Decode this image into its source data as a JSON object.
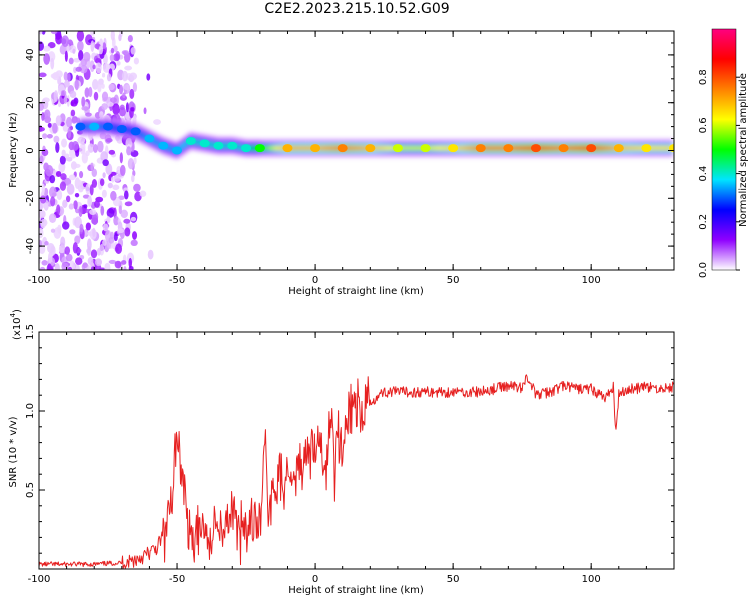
{
  "title": "C2E2.2023.215.10.52.G09",
  "chart_data": [
    {
      "type": "heatmap",
      "xlabel": "Height of straight line (km)",
      "ylabel": "Frequency (Hz)",
      "xlim": [
        -100,
        130
      ],
      "ylim": [
        -50,
        50
      ],
      "x_ticks": [
        "-100",
        "-50",
        "0",
        "50",
        "100"
      ],
      "y_ticks": [
        "-40",
        "-20",
        "0",
        "20",
        "40"
      ],
      "colorbar": {
        "label": "Normalized spectral amplitude",
        "range": [
          0,
          1
        ],
        "ticks": [
          "0.0",
          "0.2",
          "0.4",
          "0.6",
          "0.8"
        ],
        "colors": [
          "#ffffff",
          "#8f00ff",
          "#0000ff",
          "#00e5ff",
          "#00ff00",
          "#ffff00",
          "#ff8000",
          "#ff0000",
          "#ff0080"
        ]
      },
      "ridge": [
        {
          "x": -85,
          "f": 10,
          "amp": 0.3
        },
        {
          "x": -80,
          "f": 10,
          "amp": 0.35
        },
        {
          "x": -75,
          "f": 10,
          "amp": 0.3
        },
        {
          "x": -70,
          "f": 9,
          "amp": 0.3
        },
        {
          "x": -65,
          "f": 8,
          "amp": 0.3
        },
        {
          "x": -60,
          "f": 5,
          "amp": 0.35
        },
        {
          "x": -55,
          "f": 2,
          "amp": 0.35
        },
        {
          "x": -50,
          "f": 0,
          "amp": 0.35
        },
        {
          "x": -45,
          "f": 4,
          "amp": 0.4
        },
        {
          "x": -40,
          "f": 3,
          "amp": 0.4
        },
        {
          "x": -35,
          "f": 2,
          "amp": 0.4
        },
        {
          "x": -30,
          "f": 2,
          "amp": 0.4
        },
        {
          "x": -25,
          "f": 1,
          "amp": 0.4
        },
        {
          "x": -20,
          "f": 1,
          "amp": 0.5
        },
        {
          "x": -10,
          "f": 1,
          "amp": 0.7
        },
        {
          "x": 0,
          "f": 1,
          "amp": 0.7
        },
        {
          "x": 10,
          "f": 1,
          "amp": 0.75
        },
        {
          "x": 20,
          "f": 1,
          "amp": 0.7
        },
        {
          "x": 30,
          "f": 1,
          "amp": 0.6
        },
        {
          "x": 40,
          "f": 1,
          "amp": 0.6
        },
        {
          "x": 50,
          "f": 1,
          "amp": 0.65
        },
        {
          "x": 60,
          "f": 1,
          "amp": 0.75
        },
        {
          "x": 70,
          "f": 1,
          "amp": 0.75
        },
        {
          "x": 80,
          "f": 1,
          "amp": 0.8
        },
        {
          "x": 90,
          "f": 1,
          "amp": 0.75
        },
        {
          "x": 100,
          "f": 1,
          "amp": 0.8
        },
        {
          "x": 110,
          "f": 1,
          "amp": 0.7
        },
        {
          "x": 120,
          "f": 1,
          "amp": 0.65
        },
        {
          "x": 130,
          "f": 1,
          "amp": 0.65
        }
      ]
    },
    {
      "type": "line",
      "xlabel": "Height of straight line (km)",
      "ylabel": "SNR (10 * v/v)",
      "y_multiplier": "(x10",
      "y_multiplier_exp": "4",
      "xlim": [
        -100,
        130
      ],
      "ylim": [
        0,
        1.5
      ],
      "x_ticks": [
        "-100",
        "-50",
        "0",
        "50",
        "100"
      ],
      "y_ticks": [
        "0.5",
        "1.0",
        "1.5"
      ],
      "series": [
        {
          "color": "#e62020",
          "x": [
            -100,
            -90,
            -80,
            -70,
            -65,
            -60,
            -57,
            -55,
            -52,
            -50,
            -48,
            -46,
            -44,
            -42,
            -40,
            -38,
            -36,
            -34,
            -32,
            -30,
            -28,
            -26,
            -24,
            -22,
            -20,
            -18,
            -17,
            -16,
            -14,
            -12,
            -10,
            -8,
            -6,
            -4,
            -2,
            0,
            2,
            4,
            6,
            7,
            8,
            10,
            12,
            15,
            20,
            25,
            30,
            40,
            50,
            60,
            70,
            75,
            77,
            80,
            85,
            90,
            95,
            100,
            105,
            108,
            109,
            110,
            115,
            120,
            125,
            130
          ],
          "y": [
            0.03,
            0.03,
            0.03,
            0.04,
            0.06,
            0.1,
            0.14,
            0.22,
            0.4,
            0.9,
            0.55,
            0.3,
            0.2,
            0.28,
            0.22,
            0.18,
            0.25,
            0.3,
            0.3,
            0.4,
            0.25,
            0.22,
            0.3,
            0.25,
            0.3,
            0.9,
            0.4,
            0.45,
            0.5,
            0.62,
            0.6,
            0.62,
            0.68,
            0.7,
            0.75,
            0.78,
            0.82,
            0.62,
            1.1,
            0.5,
            0.9,
            0.82,
            0.95,
            1.0,
            1.06,
            1.12,
            1.12,
            1.12,
            1.12,
            1.12,
            1.16,
            1.15,
            1.22,
            1.1,
            1.12,
            1.16,
            1.14,
            1.14,
            1.08,
            1.15,
            0.85,
            1.12,
            1.14,
            1.15,
            1.14,
            1.15
          ]
        }
      ]
    }
  ]
}
